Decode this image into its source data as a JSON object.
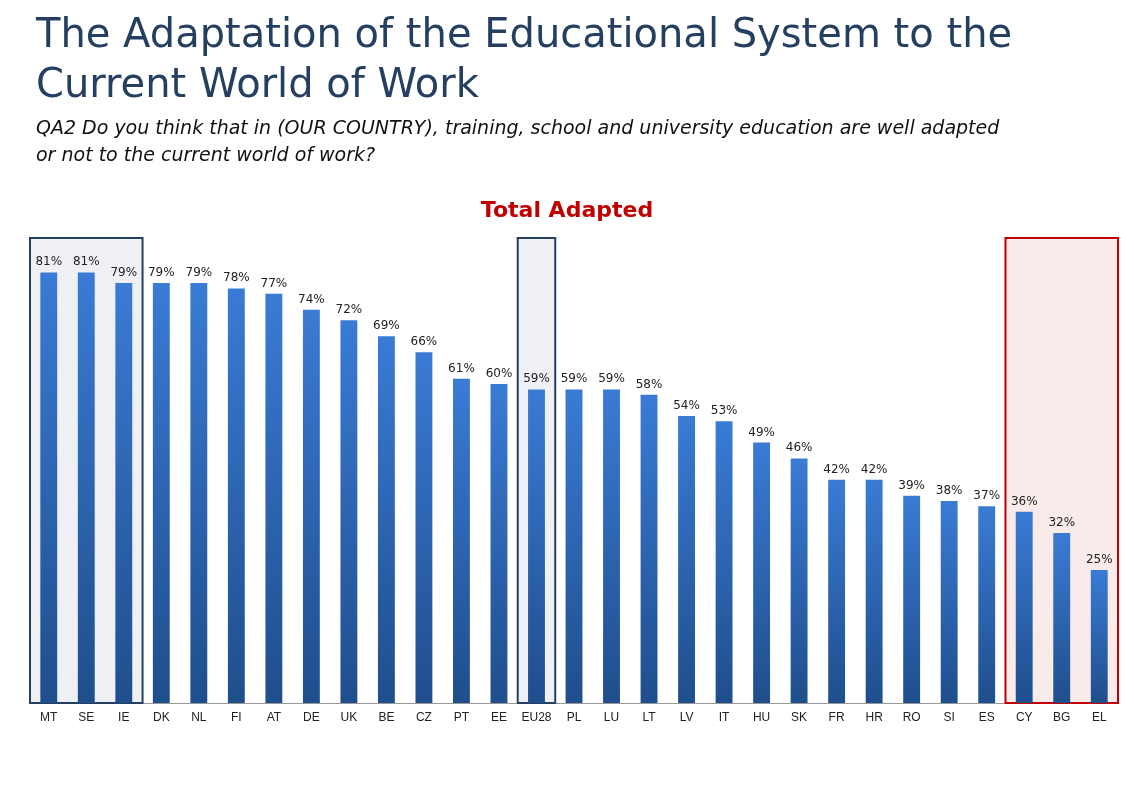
{
  "chart_data": {
    "type": "bar",
    "title": "The Adaptation of the Educational System to the Current World of Work",
    "subtitle": "QA2 Do you think that in (OUR COUNTRY), training, school and university education are well adapted or not to the current world of work?",
    "annotations": [
      "Total Adapted"
    ],
    "categories": [
      "MT",
      "SE",
      "IE",
      "DK",
      "NL",
      "FI",
      "AT",
      "DE",
      "UK",
      "BE",
      "CZ",
      "PT",
      "EE",
      "EU28",
      "PL",
      "LU",
      "LT",
      "LV",
      "IT",
      "HU",
      "SK",
      "FR",
      "HR",
      "RO",
      "SI",
      "ES",
      "CY",
      "BG",
      "EL"
    ],
    "values": [
      81,
      81,
      79,
      79,
      79,
      78,
      77,
      74,
      72,
      69,
      66,
      61,
      60,
      59,
      59,
      59,
      58,
      54,
      53,
      49,
      46,
      42,
      42,
      39,
      38,
      37,
      36,
      32,
      25
    ],
    "value_labels": [
      "81%",
      "81%",
      "79%",
      "79%",
      "79%",
      "78%",
      "77%",
      "74%",
      "72%",
      "69%",
      "66%",
      "61%",
      "60%",
      "59%",
      "59%",
      "59%",
      "58%",
      "54%",
      "53%",
      "49%",
      "46%",
      "42%",
      "42%",
      "39%",
      "38%",
      "37%",
      "36%",
      "32%",
      "25%"
    ],
    "color": "#3a7bd5",
    "bands": [
      {
        "axis": "x",
        "from": "MT",
        "to": "IE",
        "color": "#243f60"
      },
      {
        "axis": "x",
        "from": "EU28",
        "to": "EU28",
        "color": "#243f60"
      },
      {
        "axis": "x",
        "from": "CY",
        "to": "EL",
        "color": "#c00000"
      }
    ]
  }
}
